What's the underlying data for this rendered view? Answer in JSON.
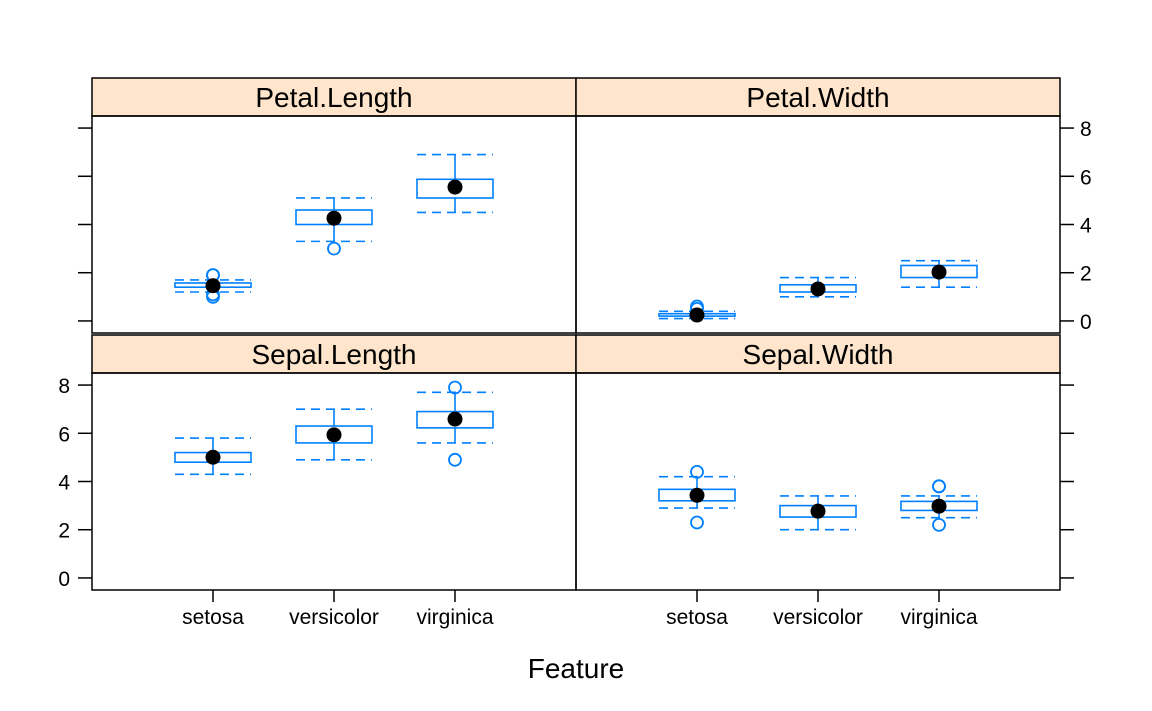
{
  "chart_data": {
    "type": "box",
    "xlabel": "Feature",
    "categories": [
      "setosa",
      "versicolor",
      "virginica"
    ],
    "ylim": [
      -0.5,
      8.5
    ],
    "yticks": [
      "0",
      "2",
      "4",
      "6",
      "8"
    ],
    "colors": {
      "box": "#0080ff",
      "strip": "#ffe5cc",
      "dot": "#000000",
      "frame": "#000000"
    },
    "panels": [
      {
        "name": "Petal.Length",
        "boxes": [
          {
            "category": "setosa",
            "min": 1.2,
            "q1": 1.4,
            "median": 1.5,
            "q3": 1.575,
            "max": 1.7,
            "mean": 1.462,
            "outliers": [
              1.0,
              1.1,
              1.9,
              1.9
            ]
          },
          {
            "category": "versicolor",
            "min": 3.3,
            "q1": 4.0,
            "median": 4.35,
            "q3": 4.6,
            "max": 5.1,
            "mean": 4.26,
            "outliers": [
              3.0
            ]
          },
          {
            "category": "virginica",
            "min": 4.5,
            "q1": 5.1,
            "median": 5.55,
            "q3": 5.875,
            "max": 6.9,
            "mean": 5.552,
            "outliers": []
          }
        ]
      },
      {
        "name": "Petal.Width",
        "boxes": [
          {
            "category": "setosa",
            "min": 0.1,
            "q1": 0.2,
            "median": 0.2,
            "q3": 0.3,
            "max": 0.4,
            "mean": 0.246,
            "outliers": [
              0.5,
              0.6
            ]
          },
          {
            "category": "versicolor",
            "min": 1.0,
            "q1": 1.2,
            "median": 1.3,
            "q3": 1.5,
            "max": 1.8,
            "mean": 1.326,
            "outliers": []
          },
          {
            "category": "virginica",
            "min": 1.4,
            "q1": 1.8,
            "median": 2.0,
            "q3": 2.3,
            "max": 2.5,
            "mean": 2.026,
            "outliers": []
          }
        ]
      },
      {
        "name": "Sepal.Length",
        "boxes": [
          {
            "category": "setosa",
            "min": 4.3,
            "q1": 4.8,
            "median": 5.0,
            "q3": 5.2,
            "max": 5.8,
            "mean": 5.006,
            "outliers": []
          },
          {
            "category": "versicolor",
            "min": 4.9,
            "q1": 5.6,
            "median": 5.9,
            "q3": 6.3,
            "max": 7.0,
            "mean": 5.936,
            "outliers": []
          },
          {
            "category": "virginica",
            "min": 5.6,
            "q1": 6.225,
            "median": 6.5,
            "q3": 6.9,
            "max": 7.7,
            "mean": 6.588,
            "outliers": [
              4.9,
              7.9
            ]
          }
        ]
      },
      {
        "name": "Sepal.Width",
        "boxes": [
          {
            "category": "setosa",
            "min": 2.9,
            "q1": 3.2,
            "median": 3.4,
            "q3": 3.675,
            "max": 4.2,
            "mean": 3.428,
            "outliers": [
              2.3,
              4.4
            ]
          },
          {
            "category": "versicolor",
            "min": 2.0,
            "q1": 2.525,
            "median": 2.8,
            "q3": 3.0,
            "max": 3.4,
            "mean": 2.77,
            "outliers": []
          },
          {
            "category": "virginica",
            "min": 2.5,
            "q1": 2.8,
            "median": 3.0,
            "q3": 3.175,
            "max": 3.4,
            "mean": 2.974,
            "outliers": [
              3.8,
              3.8,
              2.2
            ]
          }
        ]
      }
    ]
  }
}
